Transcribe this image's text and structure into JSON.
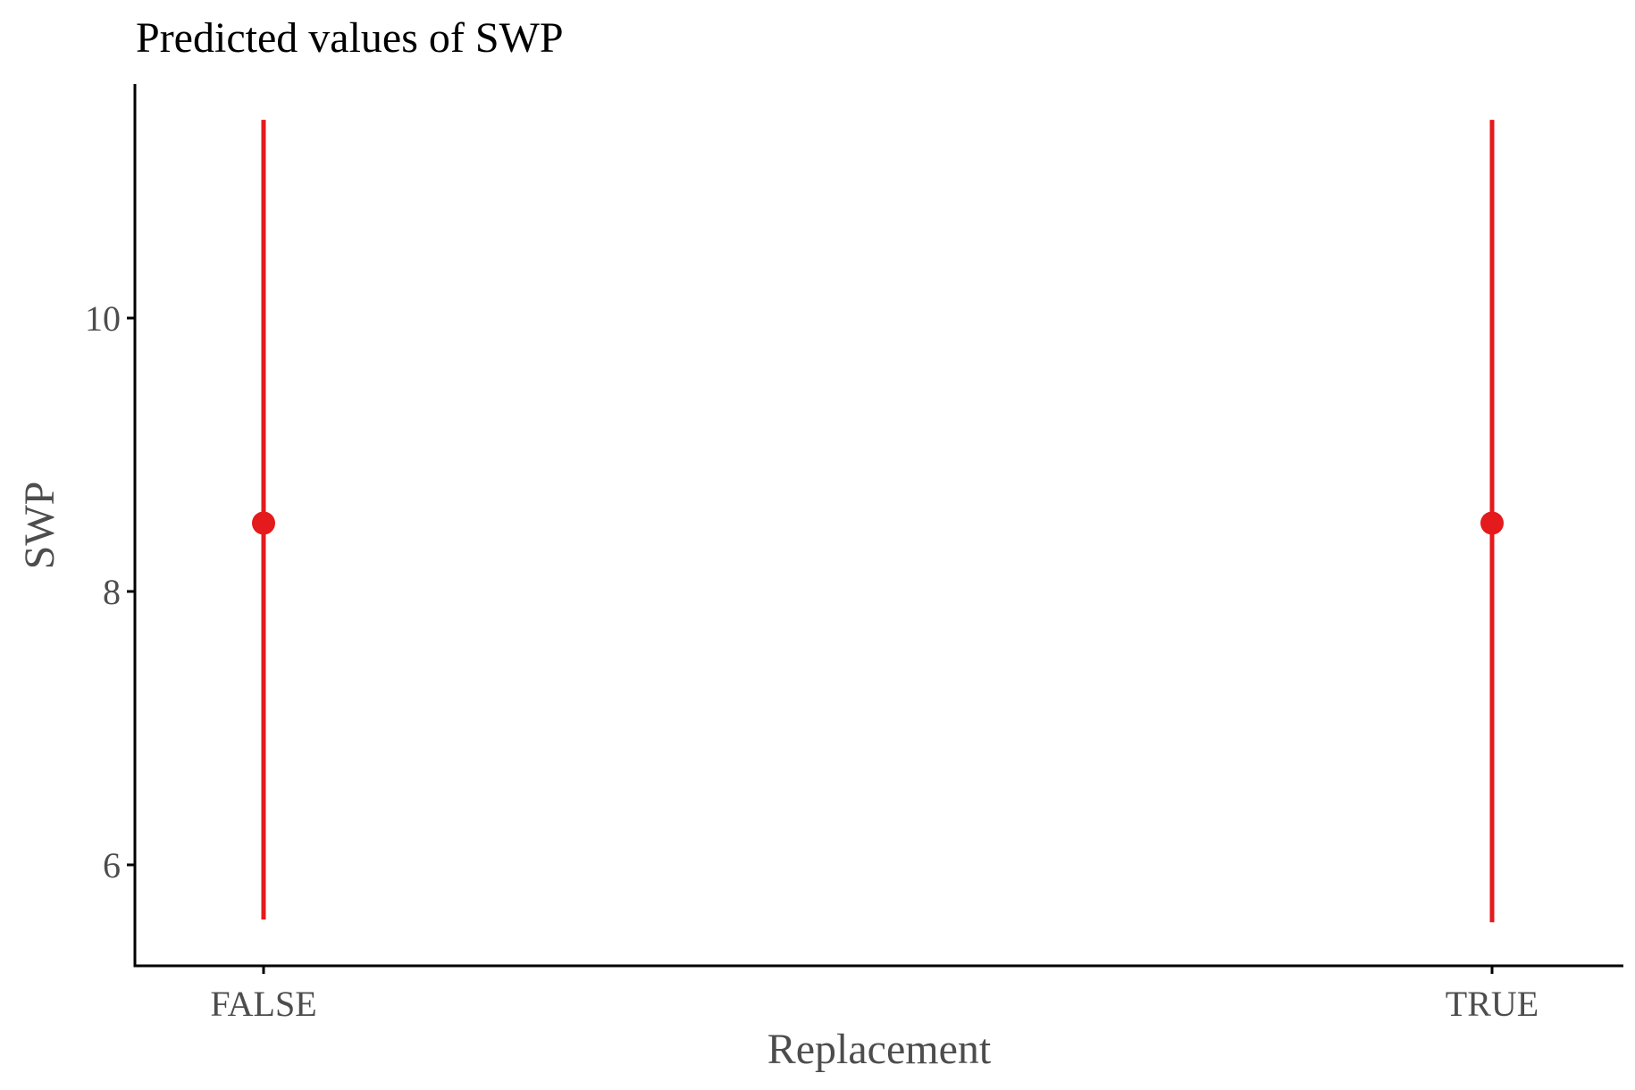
{
  "chart_data": {
    "type": "scatter",
    "title": "Predicted values of SWP",
    "xlabel": "Replacement",
    "ylabel": "SWP",
    "categories": [
      "FALSE",
      "TRUE"
    ],
    "series": [
      {
        "values": [
          8.5,
          8.5
        ],
        "ci_low": [
          5.6,
          5.58
        ],
        "ci_high": [
          11.45,
          11.45
        ]
      }
    ],
    "yticks": [
      6,
      8,
      10
    ],
    "ylim": [
      5.3,
      11.7
    ],
    "grid": false,
    "legend": "none",
    "color": "#e41a1c"
  }
}
